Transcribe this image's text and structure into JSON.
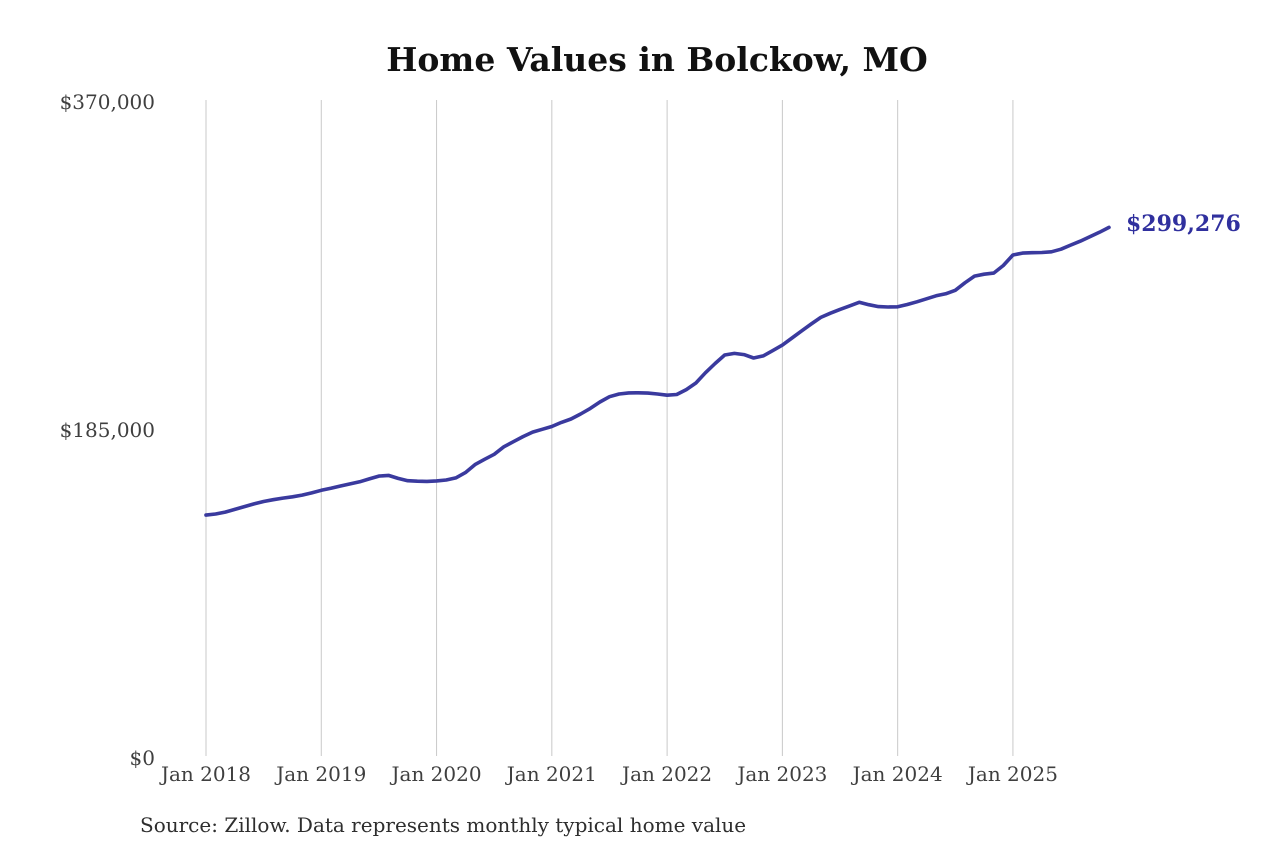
{
  "footer": {
    "source_note": "Source: Zillow. Data represents monthly typical home value"
  },
  "colors": {
    "background": "#ffffff",
    "line": "#3a3a9e",
    "annotation_text": "#30309e",
    "gridline": "#c9c9c9",
    "axis_text": "#3f3f3f",
    "title_text": "#111111",
    "source_text": "#2e2e2e"
  },
  "chart_data": {
    "type": "line",
    "title": "Home Values in Bolckow, MO",
    "xlabel": "",
    "ylabel": "",
    "ylim": [
      0,
      370000
    ],
    "grid": "vertical-only",
    "legend": "none",
    "end_label": "$299,276",
    "latest_value": 299276,
    "y_ticks": [
      {
        "label": "$370,000",
        "value": 370000
      },
      {
        "label": "$185,000",
        "value": 185000
      },
      {
        "label": "$0",
        "value": 0
      }
    ],
    "x_ticks": [
      {
        "label": "Jan 2018",
        "month_index": 0
      },
      {
        "label": "Jan 2019",
        "month_index": 12
      },
      {
        "label": "Jan 2020",
        "month_index": 24
      },
      {
        "label": "Jan 2021",
        "month_index": 36
      },
      {
        "label": "Jan 2022",
        "month_index": 48
      },
      {
        "label": "Jan 2023",
        "month_index": 60
      },
      {
        "label": "Jan 2024",
        "month_index": 72
      },
      {
        "label": "Jan 2025",
        "month_index": 84
      }
    ],
    "months": [
      "2018-01",
      "2018-02",
      "2018-03",
      "2018-04",
      "2018-05",
      "2018-06",
      "2018-07",
      "2018-08",
      "2018-09",
      "2018-10",
      "2018-11",
      "2018-12",
      "2019-01",
      "2019-02",
      "2019-03",
      "2019-04",
      "2019-05",
      "2019-06",
      "2019-07",
      "2019-08",
      "2019-09",
      "2019-10",
      "2019-11",
      "2019-12",
      "2020-01",
      "2020-02",
      "2020-03",
      "2020-04",
      "2020-05",
      "2020-06",
      "2020-07",
      "2020-08",
      "2020-09",
      "2020-10",
      "2020-11",
      "2020-12",
      "2021-01",
      "2021-02",
      "2021-03",
      "2021-04",
      "2021-05",
      "2021-06",
      "2021-07",
      "2021-08",
      "2021-09",
      "2021-10",
      "2021-11",
      "2021-12",
      "2022-01",
      "2022-02",
      "2022-03",
      "2022-04",
      "2022-05",
      "2022-06",
      "2022-07",
      "2022-08",
      "2022-09",
      "2022-10",
      "2022-11",
      "2022-12",
      "2023-01",
      "2023-02",
      "2023-03",
      "2023-04",
      "2023-05",
      "2023-06",
      "2023-07",
      "2023-08",
      "2023-09",
      "2023-10",
      "2023-11",
      "2023-12",
      "2024-01",
      "2024-02",
      "2024-03",
      "2024-04",
      "2024-05",
      "2024-06",
      "2024-07",
      "2024-08",
      "2024-09",
      "2024-10",
      "2024-11",
      "2024-12",
      "2025-01",
      "2025-02",
      "2025-03",
      "2025-04",
      "2025-05",
      "2025-06",
      "2025-07",
      "2025-08",
      "2025-09",
      "2025-10",
      "2025-11"
    ],
    "values": [
      137000,
      137600,
      138700,
      140200,
      141800,
      143300,
      144700,
      145700,
      146600,
      147300,
      148300,
      149500,
      151000,
      152100,
      153400,
      154600,
      155800,
      157400,
      159000,
      159400,
      157700,
      156400,
      156100,
      156000,
      156300,
      156800,
      158000,
      161000,
      165500,
      168500,
      171300,
      175500,
      178400,
      181300,
      183800,
      185400,
      187000,
      189300,
      191200,
      194000,
      197200,
      200800,
      203800,
      205300,
      205900,
      206000,
      205800,
      205300,
      204600,
      205000,
      207800,
      211500,
      217300,
      222500,
      227300,
      228200,
      227500,
      225600,
      226800,
      229800,
      232900,
      236900,
      240900,
      244800,
      248500,
      250900,
      253000,
      255000,
      257000,
      255700,
      254600,
      254400,
      254500,
      255800,
      257300,
      259000,
      260700,
      261800,
      263800,
      268000,
      271800,
      272900,
      273500,
      277800,
      283700,
      284800,
      285000,
      285100,
      285500,
      287000,
      289300,
      291500,
      294000,
      296500,
      299276
    ]
  }
}
